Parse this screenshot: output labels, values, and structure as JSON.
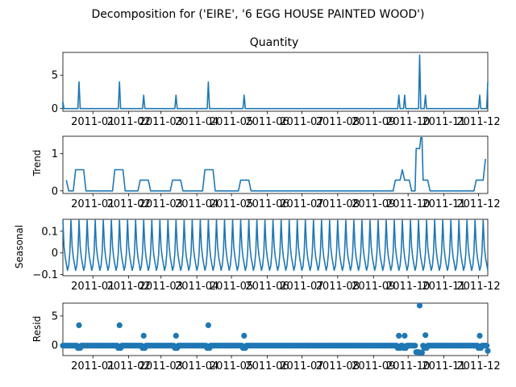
{
  "figure": {
    "suptitle": "Decomposition for ('EIRE', '6 EGG HOUSE PAINTED WOOD')"
  },
  "chart_data": [
    {
      "type": "line",
      "title": "Quantity",
      "ylabel": "",
      "ylim": [
        -0.4,
        8.4
      ],
      "yticks": [
        0,
        5
      ],
      "xlim": [
        "2010-12-06",
        "2011-12-09"
      ],
      "xticks": [
        "2011-01",
        "2011-02",
        "2011-03",
        "2011-04",
        "2011-05",
        "2011-06",
        "2011-07",
        "2011-08",
        "2011-09",
        "2011-10",
        "2011-11",
        "2011-12"
      ],
      "baseline": 0,
      "peaks": [
        {
          "x": "2010-12-06",
          "y": 1
        },
        {
          "x": "2010-12-20",
          "y": 4
        },
        {
          "x": "2011-01-24",
          "y": 4
        },
        {
          "x": "2011-02-14",
          "y": 2
        },
        {
          "x": "2011-03-14",
          "y": 2
        },
        {
          "x": "2011-04-11",
          "y": 4
        },
        {
          "x": "2011-05-12",
          "y": 2
        },
        {
          "x": "2011-09-23",
          "y": 2
        },
        {
          "x": "2011-09-28",
          "y": 2
        },
        {
          "x": "2011-10-11",
          "y": 8
        },
        {
          "x": "2011-10-16",
          "y": 2
        },
        {
          "x": "2011-12-02",
          "y": 2
        },
        {
          "x": "2011-12-09",
          "y": 4
        }
      ],
      "color": "#1f77b4"
    },
    {
      "type": "line",
      "title": "",
      "ylabel": "Trend",
      "ylim": [
        -0.07,
        1.47
      ],
      "yticks": [
        0,
        1
      ],
      "points": [
        {
          "x": "2010-12-09",
          "y": 0.29
        },
        {
          "x": "2010-12-11",
          "y": 0
        },
        {
          "x": "2010-12-15",
          "y": 0
        },
        {
          "x": "2010-12-17",
          "y": 0.57
        },
        {
          "x": "2010-12-24",
          "y": 0.57
        },
        {
          "x": "2010-12-26",
          "y": 0
        },
        {
          "x": "2011-01-18",
          "y": 0
        },
        {
          "x": "2011-01-20",
          "y": 0.57
        },
        {
          "x": "2011-01-27",
          "y": 0.57
        },
        {
          "x": "2011-01-29",
          "y": 0
        },
        {
          "x": "2011-02-09",
          "y": 0
        },
        {
          "x": "2011-02-11",
          "y": 0.29
        },
        {
          "x": "2011-02-18",
          "y": 0.29
        },
        {
          "x": "2011-02-20",
          "y": 0
        },
        {
          "x": "2011-03-09",
          "y": 0
        },
        {
          "x": "2011-03-11",
          "y": 0.29
        },
        {
          "x": "2011-03-18",
          "y": 0.29
        },
        {
          "x": "2011-03-20",
          "y": 0
        },
        {
          "x": "2011-04-06",
          "y": 0
        },
        {
          "x": "2011-04-08",
          "y": 0.57
        },
        {
          "x": "2011-04-15",
          "y": 0.57
        },
        {
          "x": "2011-04-17",
          "y": 0
        },
        {
          "x": "2011-05-07",
          "y": 0
        },
        {
          "x": "2011-05-09",
          "y": 0.29
        },
        {
          "x": "2011-05-16",
          "y": 0.29
        },
        {
          "x": "2011-05-18",
          "y": 0
        },
        {
          "x": "2011-09-18",
          "y": 0
        },
        {
          "x": "2011-09-20",
          "y": 0.29
        },
        {
          "x": "2011-09-24",
          "y": 0.29
        },
        {
          "x": "2011-09-26",
          "y": 0.57
        },
        {
          "x": "2011-09-28",
          "y": 0.29
        },
        {
          "x": "2011-10-02",
          "y": 0.29
        },
        {
          "x": "2011-10-04",
          "y": 0
        },
        {
          "x": "2011-10-07",
          "y": 0
        },
        {
          "x": "2011-10-08",
          "y": 1.14
        },
        {
          "x": "2011-10-11",
          "y": 1.14
        },
        {
          "x": "2011-10-12",
          "y": 1.43
        },
        {
          "x": "2011-10-13",
          "y": 1.43
        },
        {
          "x": "2011-10-14",
          "y": 0.29
        },
        {
          "x": "2011-10-18",
          "y": 0.29
        },
        {
          "x": "2011-10-20",
          "y": 0
        },
        {
          "x": "2011-11-27",
          "y": 0
        },
        {
          "x": "2011-11-29",
          "y": 0.29
        },
        {
          "x": "2011-12-05",
          "y": 0.29
        },
        {
          "x": "2011-12-07",
          "y": 0.86
        }
      ],
      "color": "#1f77b4"
    },
    {
      "type": "line",
      "title": "",
      "ylabel": "Seasonal",
      "ylim": [
        -0.105,
        0.155
      ],
      "yticks": [
        -0.1,
        0.0,
        0.1
      ],
      "period_days": 7,
      "pattern": [
        0.15,
        0.03,
        -0.02,
        -0.05,
        -0.08,
        -0.06,
        0.0
      ],
      "color": "#1f77b4"
    },
    {
      "type": "scatter",
      "title": "",
      "ylabel": "Resid",
      "ylim": [
        -1.8,
        7.2
      ],
      "yticks": [
        0,
        5
      ],
      "baseline": -0.1,
      "outliers": [
        {
          "x": "2010-12-20",
          "y": 3.4
        },
        {
          "x": "2011-01-24",
          "y": 3.4
        },
        {
          "x": "2011-02-14",
          "y": 1.6
        },
        {
          "x": "2011-03-14",
          "y": 1.6
        },
        {
          "x": "2011-04-11",
          "y": 3.4
        },
        {
          "x": "2011-05-12",
          "y": 1.6
        },
        {
          "x": "2011-09-23",
          "y": 1.6
        },
        {
          "x": "2011-09-28",
          "y": 1.6
        },
        {
          "x": "2011-10-11",
          "y": 6.8
        },
        {
          "x": "2011-10-16",
          "y": 1.7
        },
        {
          "x": "2011-12-02",
          "y": 1.6
        }
      ],
      "dips": [
        {
          "x": "2011-10-08",
          "y": -1.2
        },
        {
          "x": "2011-10-09",
          "y": -1.2
        },
        {
          "x": "2011-10-10",
          "y": -1.2
        },
        {
          "x": "2011-10-12",
          "y": -1.3
        },
        {
          "x": "2011-10-13",
          "y": -1.3
        },
        {
          "x": "2011-12-09",
          "y": -1.0
        }
      ],
      "color": "#1f77b4"
    }
  ]
}
